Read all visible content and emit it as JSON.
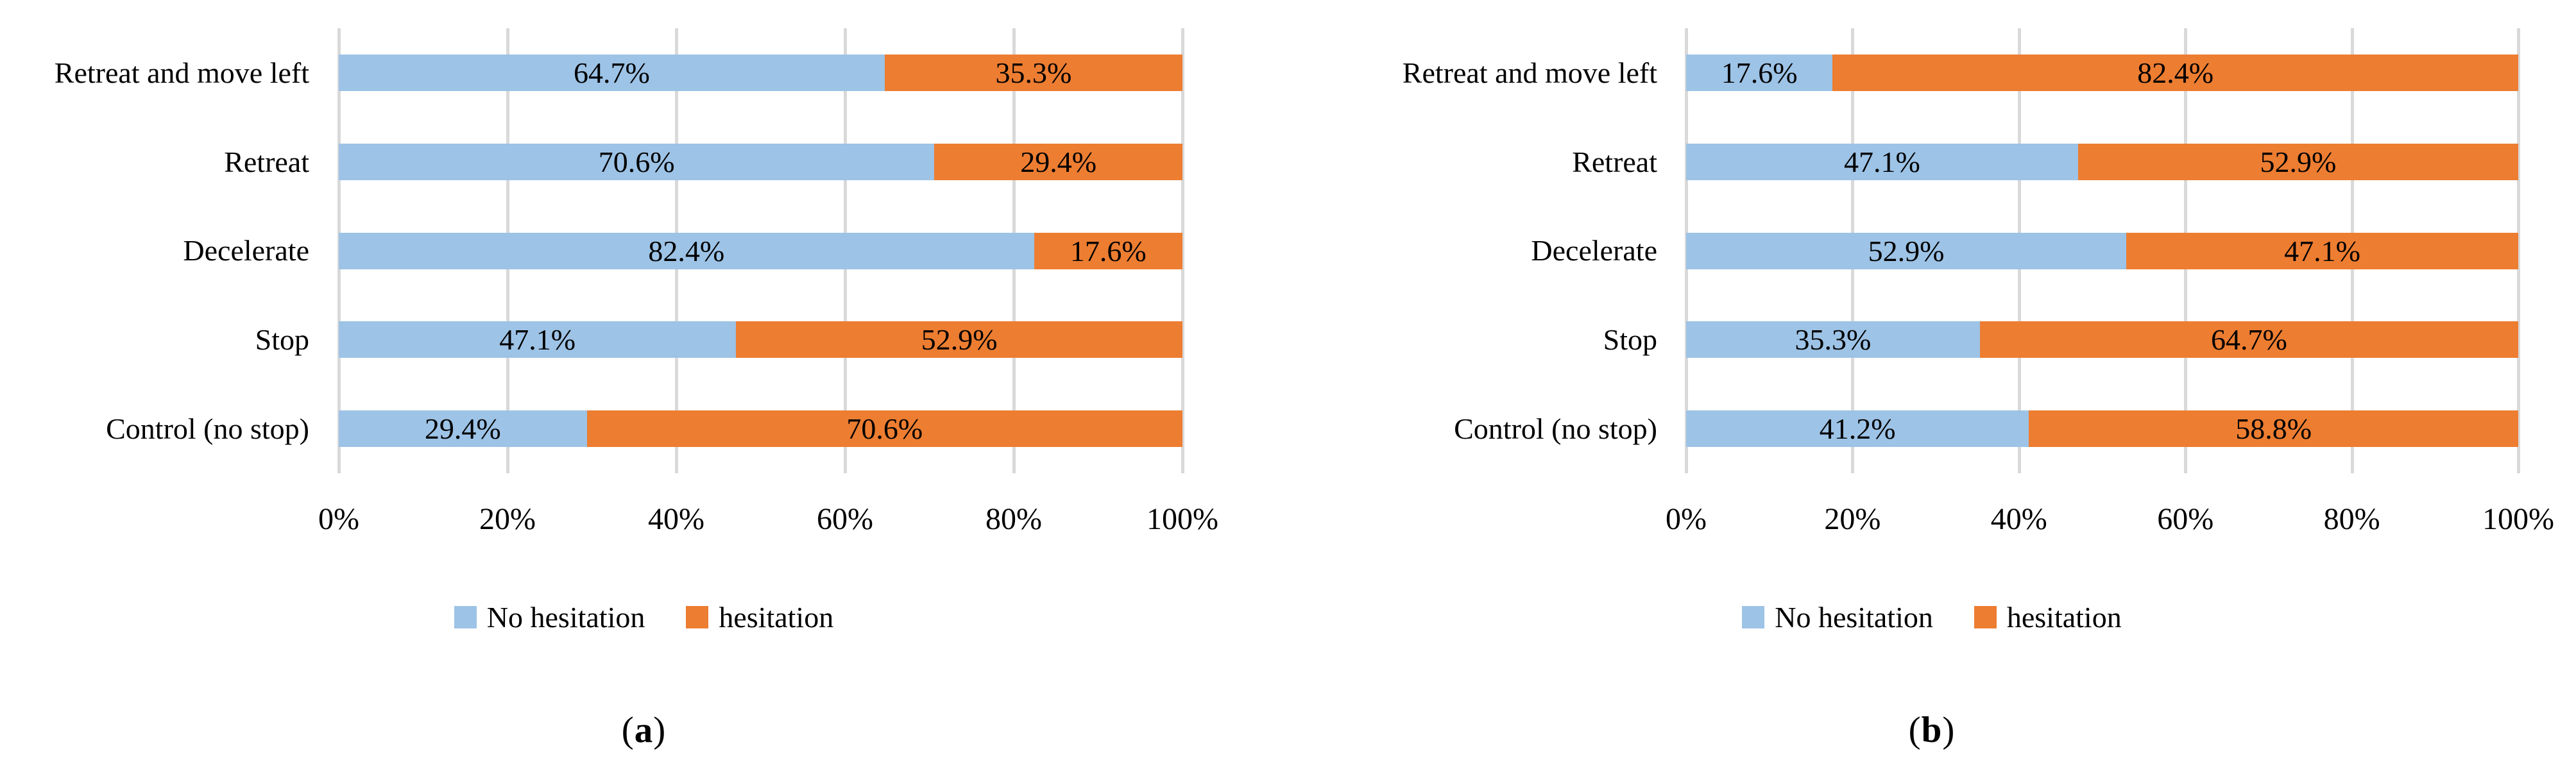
{
  "figure": {
    "caption_open": "(",
    "caption_close": ")",
    "colors": {
      "no_hesitation": "#9DC3E6",
      "hesitation": "#ED7D31",
      "gridline": "#D9D9D9",
      "text": "#000000",
      "background": "#FFFFFF"
    }
  },
  "chart_data": [
    {
      "type": "bar",
      "orientation": "horizontal",
      "stacked": true,
      "caption": "(a)",
      "caption_letter": "a",
      "categories": [
        "Retreat and move left",
        "Retreat",
        "Decelerate",
        "Stop",
        "Control (no stop)"
      ],
      "series": [
        {
          "name": "No hesitation",
          "color": "#9DC3E6",
          "values": [
            64.7,
            70.6,
            82.4,
            47.1,
            29.4
          ],
          "labels": [
            "64.7%",
            "70.6%",
            "82.4%",
            "47.1%",
            "29.4%"
          ]
        },
        {
          "name": "hesitation",
          "color": "#ED7D31",
          "values": [
            35.3,
            29.4,
            17.6,
            52.9,
            70.6
          ],
          "labels": [
            "35.3%",
            "29.4%",
            "17.6%",
            "52.9%",
            "70.6%"
          ]
        }
      ],
      "x_ticks": [
        "0%",
        "20%",
        "40%",
        "60%",
        "80%",
        "100%"
      ],
      "xlim": [
        0,
        100
      ],
      "grid": true,
      "legend_position": "bottom"
    },
    {
      "type": "bar",
      "orientation": "horizontal",
      "stacked": true,
      "caption": "(b)",
      "caption_letter": "b",
      "categories": [
        "Retreat and move left",
        "Retreat",
        "Decelerate",
        "Stop",
        "Control (no stop)"
      ],
      "series": [
        {
          "name": "No hesitation",
          "color": "#9DC3E6",
          "values": [
            17.6,
            47.1,
            52.9,
            35.3,
            41.2
          ],
          "labels": [
            "17.6%",
            "47.1%",
            "52.9%",
            "35.3%",
            "41.2%"
          ]
        },
        {
          "name": "hesitation",
          "color": "#ED7D31",
          "values": [
            82.4,
            52.9,
            47.1,
            64.7,
            58.8
          ],
          "labels": [
            "82.4%",
            "52.9%",
            "47.1%",
            "64.7%",
            "58.8%"
          ]
        }
      ],
      "x_ticks": [
        "0%",
        "20%",
        "40%",
        "60%",
        "80%",
        "100%"
      ],
      "xlim": [
        0,
        100
      ],
      "grid": true,
      "legend_position": "bottom"
    }
  ]
}
